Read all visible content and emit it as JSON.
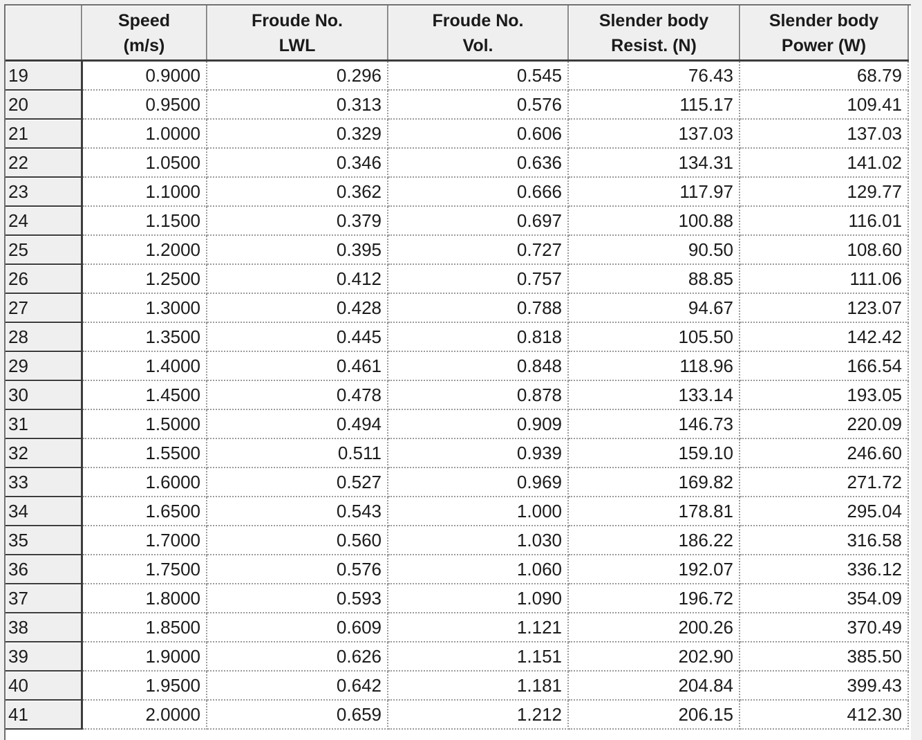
{
  "table": {
    "columns": [
      {
        "line1": "",
        "line2": ""
      },
      {
        "line1": "Speed",
        "line2": "(m/s)"
      },
      {
        "line1": "Froude No.",
        "line2": "LWL"
      },
      {
        "line1": "Froude No.",
        "line2": "Vol."
      },
      {
        "line1": "Slender body",
        "line2": "Resist. (N)"
      },
      {
        "line1": "Slender body",
        "line2": "Power (W)"
      }
    ],
    "rows": [
      [
        "19",
        "0.9000",
        "0.296",
        "0.545",
        "76.43",
        "68.79"
      ],
      [
        "20",
        "0.9500",
        "0.313",
        "0.576",
        "115.17",
        "109.41"
      ],
      [
        "21",
        "1.0000",
        "0.329",
        "0.606",
        "137.03",
        "137.03"
      ],
      [
        "22",
        "1.0500",
        "0.346",
        "0.636",
        "134.31",
        "141.02"
      ],
      [
        "23",
        "1.1000",
        "0.362",
        "0.666",
        "117.97",
        "129.77"
      ],
      [
        "24",
        "1.1500",
        "0.379",
        "0.697",
        "100.88",
        "116.01"
      ],
      [
        "25",
        "1.2000",
        "0.395",
        "0.727",
        "90.50",
        "108.60"
      ],
      [
        "26",
        "1.2500",
        "0.412",
        "0.757",
        "88.85",
        "111.06"
      ],
      [
        "27",
        "1.3000",
        "0.428",
        "0.788",
        "94.67",
        "123.07"
      ],
      [
        "28",
        "1.3500",
        "0.445",
        "0.818",
        "105.50",
        "142.42"
      ],
      [
        "29",
        "1.4000",
        "0.461",
        "0.848",
        "118.96",
        "166.54"
      ],
      [
        "30",
        "1.4500",
        "0.478",
        "0.878",
        "133.14",
        "193.05"
      ],
      [
        "31",
        "1.5000",
        "0.494",
        "0.909",
        "146.73",
        "220.09"
      ],
      [
        "32",
        "1.5500",
        "0.511",
        "0.939",
        "159.10",
        "246.60"
      ],
      [
        "33",
        "1.6000",
        "0.527",
        "0.969",
        "169.82",
        "271.72"
      ],
      [
        "34",
        "1.6500",
        "0.543",
        "1.000",
        "178.81",
        "295.04"
      ],
      [
        "35",
        "1.7000",
        "0.560",
        "1.030",
        "186.22",
        "316.58"
      ],
      [
        "36",
        "1.7500",
        "0.576",
        "1.060",
        "192.07",
        "336.12"
      ],
      [
        "37",
        "1.8000",
        "0.593",
        "1.090",
        "196.72",
        "354.09"
      ],
      [
        "38",
        "1.8500",
        "0.609",
        "1.121",
        "200.26",
        "370.49"
      ],
      [
        "39",
        "1.9000",
        "0.626",
        "1.151",
        "202.90",
        "385.50"
      ],
      [
        "40",
        "1.9500",
        "0.642",
        "1.181",
        "204.84",
        "399.43"
      ],
      [
        "41",
        "2.0000",
        "0.659",
        "1.212",
        "206.15",
        "412.30"
      ]
    ]
  }
}
